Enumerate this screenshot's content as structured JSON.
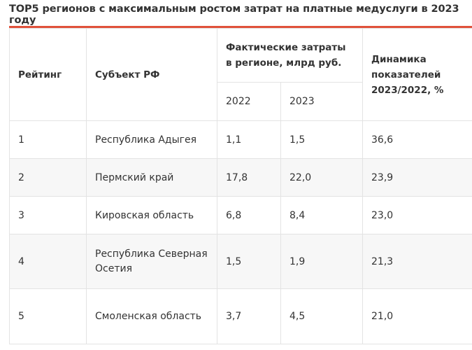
{
  "title": "TOP5 регионов с максимальным ростом затрат на платные медуслуги в 2023 году",
  "accent_color": "#e0513b",
  "table": {
    "headers": {
      "rank": "Рейтинг",
      "region": "Субъект РФ",
      "spending": "Фактические затраты в регионе, млрд руб.",
      "year_2022": "2022",
      "year_2023": "2023",
      "dynamics": "Динамика показателей 2023/2022, %"
    },
    "rows": [
      {
        "rank": "1",
        "region": "Республика Адыгея",
        "v2022": "1,1",
        "v2023": "1,5",
        "dynamics": "36,6"
      },
      {
        "rank": "2",
        "region": "Пермский край",
        "v2022": "17,8",
        "v2023": "22,0",
        "dynamics": "23,9"
      },
      {
        "rank": "3",
        "region": "Кировская область",
        "v2022": "6,8",
        "v2023": "8,4",
        "dynamics": "23,0"
      },
      {
        "rank": "4",
        "region": "Республика Северная Осетия",
        "v2022": "1,5",
        "v2023": "1,9",
        "dynamics": "21,3"
      },
      {
        "rank": "5",
        "region": "Смоленская область",
        "v2022": "3,7",
        "v2023": "4,5",
        "dynamics": "21,0"
      }
    ]
  }
}
